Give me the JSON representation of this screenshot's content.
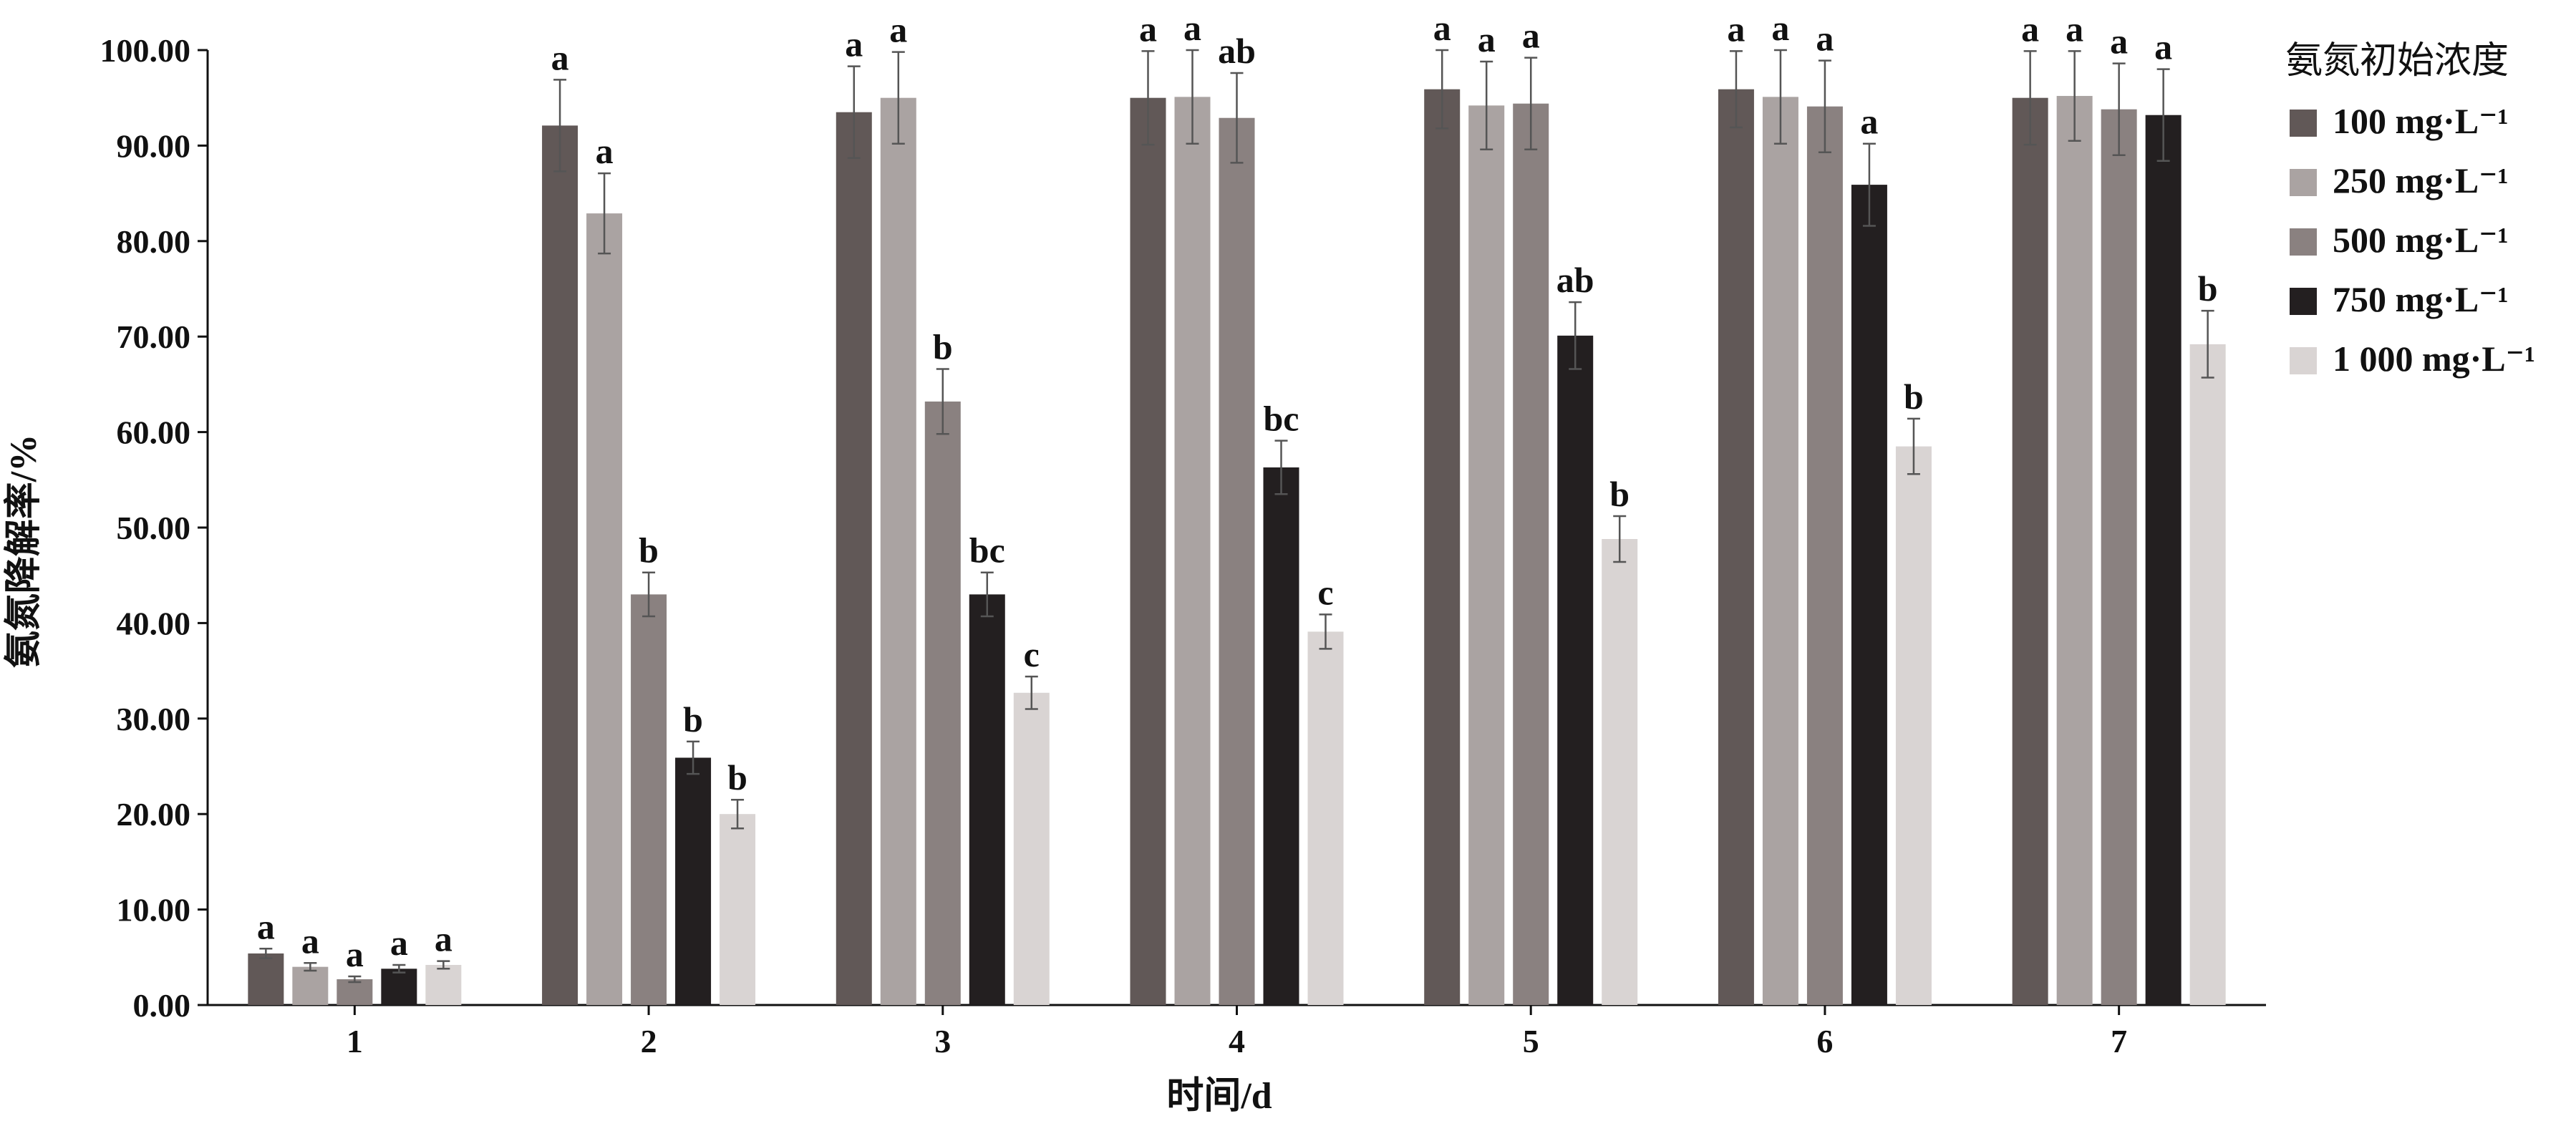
{
  "chart_data": {
    "type": "bar",
    "xlabel": "时间/d",
    "ylabel": "氨氮降解率/%",
    "ylim": [
      0,
      100
    ],
    "yticks": [
      "0.00",
      "10.00",
      "20.00",
      "30.00",
      "40.00",
      "50.00",
      "60.00",
      "70.00",
      "80.00",
      "90.00",
      "100.00"
    ],
    "categories": [
      "1",
      "2",
      "3",
      "4",
      "5",
      "6",
      "7"
    ],
    "legend_title": "氨氮初始浓度",
    "legend_position": "right",
    "series": [
      {
        "name": "100 mg·L⁻¹",
        "color": "#615857",
        "values": [
          5.4,
          92.1,
          93.5,
          95.0,
          95.9,
          95.9,
          95.0
        ],
        "errors": [
          0.5,
          4.8,
          4.8,
          4.9,
          4.1,
          4.0,
          4.9
        ],
        "labels": [
          "a",
          "a",
          "a",
          "a",
          "a",
          "a",
          "a"
        ]
      },
      {
        "name": "250 mg·L⁻¹",
        "color": "#aaa3a2",
        "values": [
          4.0,
          82.9,
          95.0,
          95.1,
          94.2,
          95.1,
          95.2
        ],
        "errors": [
          0.4,
          4.2,
          4.8,
          4.9,
          4.6,
          4.9,
          4.7
        ],
        "labels": [
          "a",
          "a",
          "a",
          "a",
          "a",
          "a",
          "a"
        ]
      },
      {
        "name": "500 mg·L⁻¹",
        "color": "#8a8180",
        "values": [
          2.7,
          43.0,
          63.2,
          92.9,
          94.4,
          94.1,
          93.8
        ],
        "errors": [
          0.3,
          2.3,
          3.4,
          4.7,
          4.8,
          4.8,
          4.8
        ],
        "labels": [
          "a",
          "b",
          "b",
          "ab",
          "a",
          "a",
          "a"
        ]
      },
      {
        "name": "750 mg·L⁻¹",
        "color": "#231f20",
        "values": [
          3.8,
          25.9,
          43.0,
          56.3,
          70.1,
          85.9,
          93.2
        ],
        "errors": [
          0.4,
          1.7,
          2.3,
          2.8,
          3.5,
          4.3,
          4.8
        ],
        "labels": [
          "a",
          "b",
          "bc",
          "bc",
          "ab",
          "a",
          "a"
        ]
      },
      {
        "name": "1 000 mg·L⁻¹",
        "color": "#d9d4d3",
        "values": [
          4.2,
          20.0,
          32.7,
          39.1,
          48.8,
          58.5,
          69.2
        ],
        "errors": [
          0.4,
          1.5,
          1.7,
          1.8,
          2.4,
          2.9,
          3.5
        ],
        "labels": [
          "a",
          "b",
          "c",
          "c",
          "b",
          "b",
          "b"
        ]
      }
    ]
  }
}
